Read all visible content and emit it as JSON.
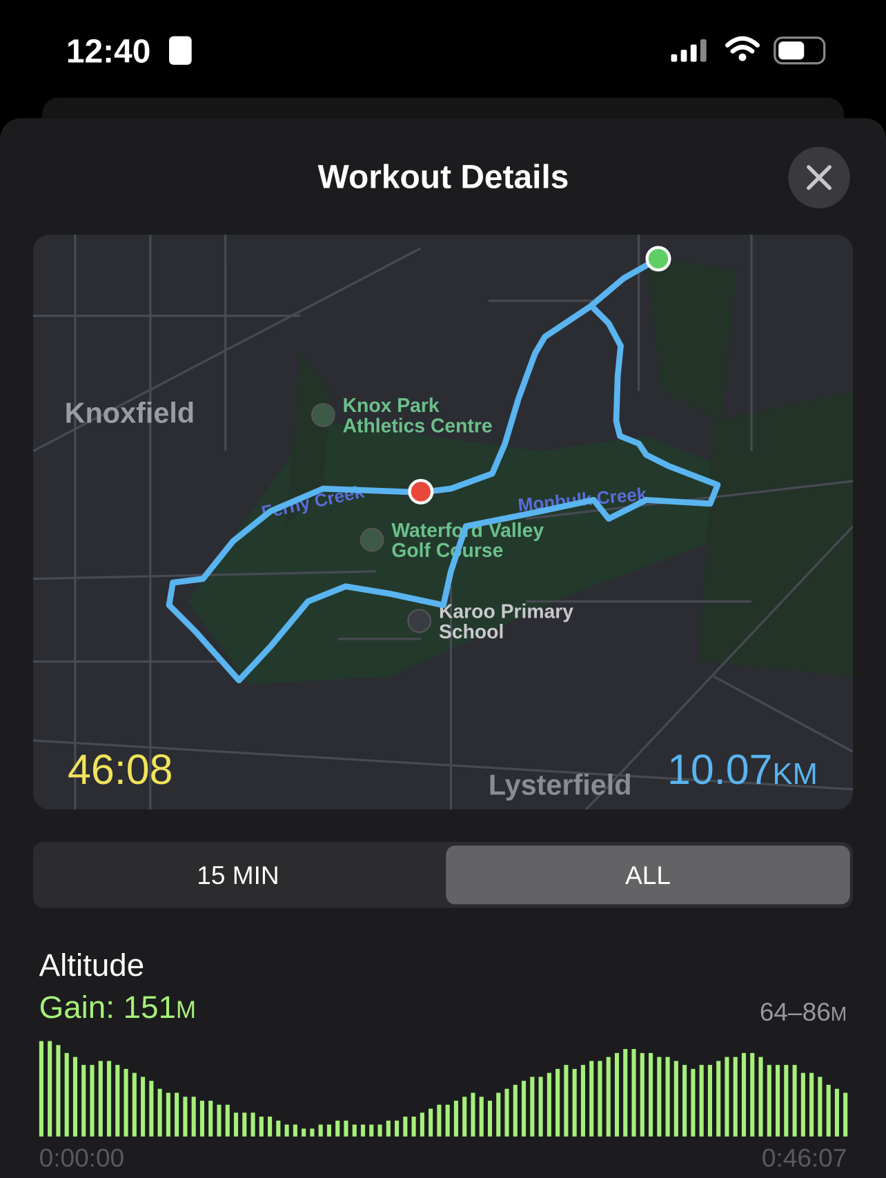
{
  "status_bar": {
    "time": "12:40"
  },
  "header": {
    "title": "Workout Details"
  },
  "map": {
    "place_labels": [
      "Knoxfield",
      "Lysterfield"
    ],
    "poi_labels": [
      {
        "lines": [
          "Knox Park",
          "Athletics Centre"
        ]
      },
      {
        "lines": [
          "Waterford Valley",
          "Golf Course"
        ]
      },
      {
        "lines": [
          "Karoo Primary",
          "School"
        ]
      }
    ],
    "creek_labels": [
      "Monbulk Creek",
      "Ferny Creek"
    ],
    "duration": "46:08",
    "distance": "10.07",
    "distance_unit": "KM"
  },
  "segmented": {
    "options": [
      "15 MIN",
      "ALL"
    ],
    "selected": 1
  },
  "altitude": {
    "title": "Altitude",
    "gain": "Gain: 151",
    "gain_unit": "M",
    "range": "64–86",
    "range_unit": "M",
    "start_label": "0:00:00",
    "end_label": "0:46:07",
    "color": "#a6f07a",
    "ylim": [
      62,
      86
    ],
    "values": [
      86,
      86,
      85,
      83,
      82,
      80,
      80,
      81,
      81,
      80,
      79,
      78,
      77,
      76,
      74,
      73,
      73,
      72,
      72,
      71,
      71,
      70,
      70,
      68,
      68,
      68,
      67,
      67,
      66,
      65,
      65,
      64,
      64,
      65,
      65,
      66,
      66,
      65,
      65,
      65,
      65,
      66,
      66,
      67,
      67,
      68,
      69,
      70,
      70,
      71,
      72,
      73,
      72,
      71,
      73,
      74,
      75,
      76,
      77,
      77,
      78,
      79,
      80,
      79,
      80,
      81,
      81,
      82,
      83,
      84,
      84,
      83,
      83,
      82,
      82,
      81,
      80,
      79,
      80,
      80,
      81,
      82,
      82,
      83,
      83,
      82,
      80,
      80,
      80,
      80,
      78,
      78,
      77,
      75,
      74,
      73
    ]
  }
}
